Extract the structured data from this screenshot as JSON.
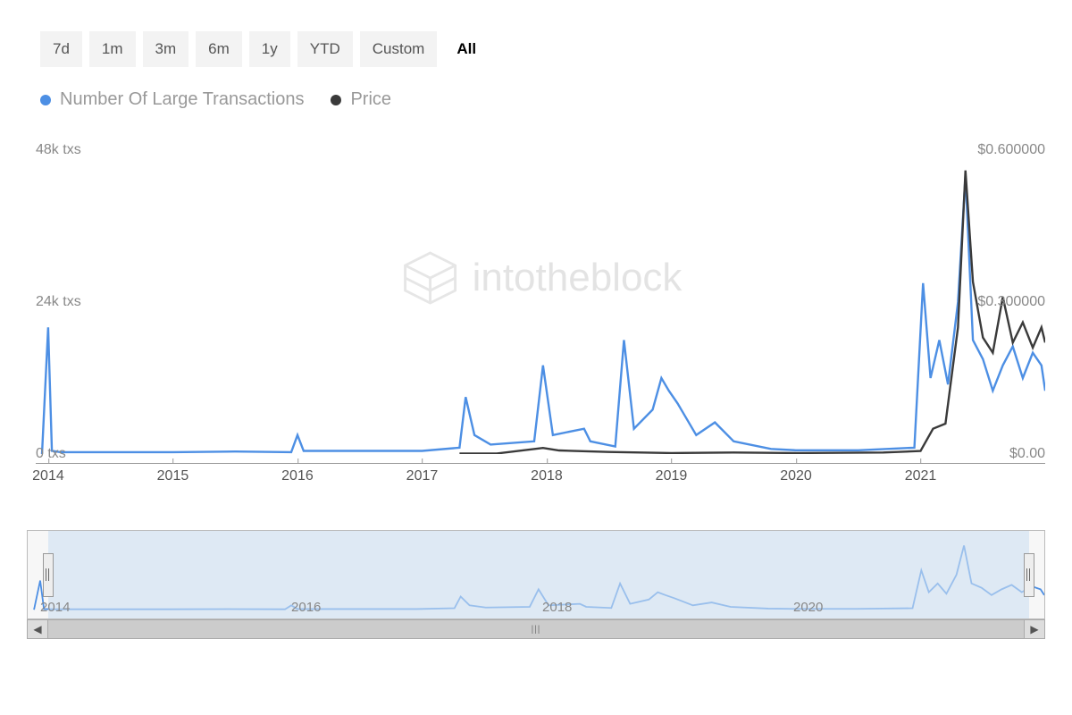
{
  "range_selector": {
    "buttons": [
      "7d",
      "1m",
      "3m",
      "6m",
      "1y",
      "YTD",
      "Custom",
      "All"
    ],
    "active": "All"
  },
  "legend": {
    "series": [
      {
        "label": "Number Of Large Transactions",
        "color": "#4d8fe4"
      },
      {
        "label": "Price",
        "color": "#3a3a3a"
      }
    ],
    "label_color": "#999999",
    "dot_size": 12
  },
  "watermark": {
    "text": "intotheblock",
    "icon_stroke": "#444444"
  },
  "chart": {
    "type": "line",
    "background_color": "#ffffff",
    "left_axis": {
      "label_suffix": " txs",
      "ticks": [
        {
          "value": 48,
          "label": "48k txs",
          "pos": 0
        },
        {
          "value": 24,
          "label": "24k txs",
          "pos": 50
        },
        {
          "value": 0,
          "label": "0 txs",
          "pos": 100
        }
      ],
      "ylim": [
        0,
        48
      ],
      "color": "#888888",
      "fontsize": 16
    },
    "right_axis": {
      "ticks": [
        {
          "value": 0.6,
          "label": "$0.600000",
          "pos": 0
        },
        {
          "value": 0.3,
          "label": "$0.300000",
          "pos": 50
        },
        {
          "value": 0.0,
          "label": "$0.00",
          "pos": 100
        }
      ],
      "ylim": [
        0,
        0.6
      ],
      "color": "#888888",
      "fontsize": 16
    },
    "x_axis": {
      "range_years": [
        2013.9,
        2022.0
      ],
      "ticks": [
        2014,
        2015,
        2016,
        2017,
        2018,
        2019,
        2020,
        2021
      ],
      "color": "#555555",
      "fontsize": 16
    },
    "series_txs": {
      "color": "#4d8fe4",
      "stroke_width": 2.4,
      "data": [
        [
          2013.95,
          0
        ],
        [
          2014.0,
          20
        ],
        [
          2014.03,
          0.5
        ],
        [
          2014.1,
          0.3
        ],
        [
          2014.5,
          0.3
        ],
        [
          2015.0,
          0.3
        ],
        [
          2015.5,
          0.4
        ],
        [
          2015.95,
          0.3
        ],
        [
          2016.0,
          3
        ],
        [
          2016.05,
          0.5
        ],
        [
          2016.5,
          0.5
        ],
        [
          2017.0,
          0.5
        ],
        [
          2017.3,
          1
        ],
        [
          2017.35,
          9
        ],
        [
          2017.42,
          3
        ],
        [
          2017.55,
          1.5
        ],
        [
          2017.9,
          2
        ],
        [
          2017.97,
          14
        ],
        [
          2018.05,
          3
        ],
        [
          2018.3,
          4
        ],
        [
          2018.35,
          2
        ],
        [
          2018.55,
          1.2
        ],
        [
          2018.62,
          18
        ],
        [
          2018.7,
          4
        ],
        [
          2018.85,
          7
        ],
        [
          2018.92,
          12
        ],
        [
          2018.98,
          10
        ],
        [
          2019.05,
          8
        ],
        [
          2019.2,
          3
        ],
        [
          2019.35,
          5
        ],
        [
          2019.5,
          2
        ],
        [
          2019.8,
          0.8
        ],
        [
          2020.0,
          0.6
        ],
        [
          2020.5,
          0.6
        ],
        [
          2020.95,
          1
        ],
        [
          2021.02,
          27
        ],
        [
          2021.08,
          12
        ],
        [
          2021.15,
          18
        ],
        [
          2021.22,
          11
        ],
        [
          2021.3,
          24
        ],
        [
          2021.36,
          44
        ],
        [
          2021.42,
          18
        ],
        [
          2021.5,
          15
        ],
        [
          2021.58,
          10
        ],
        [
          2021.66,
          14
        ],
        [
          2021.74,
          17
        ],
        [
          2021.82,
          12
        ],
        [
          2021.9,
          16
        ],
        [
          2021.97,
          14
        ],
        [
          2022.0,
          10
        ]
      ]
    },
    "series_price": {
      "color": "#3a3a3a",
      "stroke_width": 2.4,
      "data": [
        [
          2017.3,
          0.001
        ],
        [
          2017.6,
          0.001
        ],
        [
          2017.97,
          0.012
        ],
        [
          2018.1,
          0.007
        ],
        [
          2018.5,
          0.004
        ],
        [
          2019.0,
          0.002
        ],
        [
          2019.5,
          0.003
        ],
        [
          2020.0,
          0.002
        ],
        [
          2020.7,
          0.003
        ],
        [
          2021.0,
          0.006
        ],
        [
          2021.1,
          0.05
        ],
        [
          2021.2,
          0.06
        ],
        [
          2021.3,
          0.25
        ],
        [
          2021.36,
          0.56
        ],
        [
          2021.42,
          0.34
        ],
        [
          2021.5,
          0.23
        ],
        [
          2021.58,
          0.2
        ],
        [
          2021.66,
          0.31
        ],
        [
          2021.74,
          0.22
        ],
        [
          2021.82,
          0.26
        ],
        [
          2021.9,
          0.21
        ],
        [
          2021.97,
          0.25
        ],
        [
          2022.0,
          0.22
        ]
      ]
    }
  },
  "navigator": {
    "background": "#f7f7f7",
    "mask_color": "#cde0f2",
    "mask_opacity": 0.6,
    "x_ticks": [
      2014,
      2016,
      2018,
      2020
    ],
    "x_range": [
      2013.9,
      2022.0
    ],
    "series_color": "#4d8fe4",
    "handle_left_pct": 2,
    "handle_right_pct": 98.5
  },
  "scrollbar": {
    "left_arrow": "◀",
    "right_arrow": "▶",
    "grip": "|||"
  }
}
